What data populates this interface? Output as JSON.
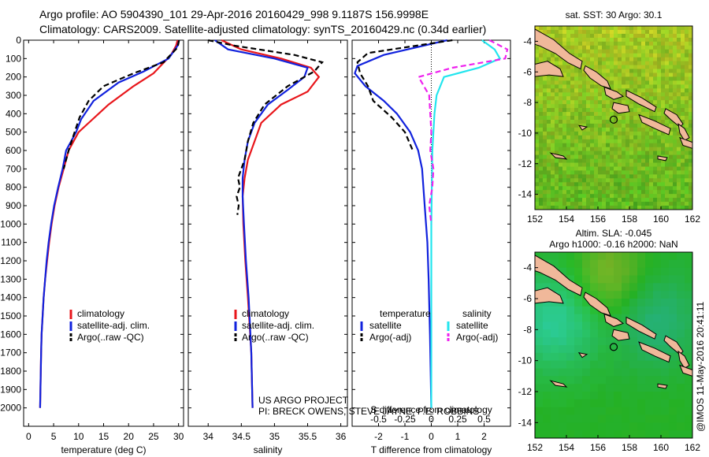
{
  "header": {
    "title_line1": "Argo profile: AO 5904390_101 29-Apr-2016 20160429_998 9.1187S 156.9998E",
    "title_line2": "Climatology: CARS2009. Satellite-adjusted climatology: synTS_20160429.nc (0.34d earlier)"
  },
  "credits": {
    "line1": "US ARGO PROJECT",
    "line2": "PI: BRECK OWENS, STEVE JAYNE, P.E. ROBBINS",
    "stamp": "@IMOS 11-May-2016 20:41:11"
  },
  "colors": {
    "climatology": "#e8161b",
    "satellite_adj": "#1122dd",
    "argo": "#000000",
    "salinity_satellite": "#22e5ee",
    "salinity_argo": "#ee22ee",
    "land": "#f0b89a",
    "map_green": "#4fc83c"
  },
  "chart_data": [
    {
      "type": "line",
      "xlabel": "temperature (deg C)",
      "ylabel": "",
      "xlim": [
        -1,
        31
      ],
      "ylim": [
        2100,
        0
      ],
      "xticks": [
        0,
        5,
        10,
        15,
        20,
        25,
        30
      ],
      "yticks": [
        0,
        100,
        200,
        300,
        400,
        500,
        600,
        700,
        800,
        900,
        1000,
        1100,
        1200,
        1300,
        1400,
        1500,
        1600,
        1700,
        1800,
        1900,
        2000
      ],
      "legend": [
        "climatology",
        "satellite-adj. clim.",
        "Argo(..raw -QC)"
      ],
      "legend_position": "lower-center",
      "series": [
        {
          "name": "climatology",
          "style": "solid",
          "color": "#e8161b",
          "x": [
            29.8,
            29.5,
            28.5,
            25,
            21,
            16,
            12,
            10,
            9,
            8,
            7,
            6,
            5.2,
            4.6,
            4.1,
            3.7,
            3.3,
            3.0,
            2.8,
            2.6,
            2.5,
            2.3
          ],
          "y": [
            0,
            30,
            80,
            180,
            250,
            350,
            450,
            500,
            550,
            600,
            700,
            800,
            900,
            1000,
            1100,
            1200,
            1300,
            1400,
            1500,
            1600,
            1700,
            2000
          ]
        },
        {
          "name": "satellite-adj. clim.",
          "style": "solid",
          "color": "#1122dd",
          "x": [
            30.1,
            29.8,
            28,
            23,
            18,
            13,
            10.5,
            9.5,
            8.5,
            7.5,
            6.8,
            5.9,
            5.1,
            4.5,
            4.0,
            3.6,
            3.3,
            3.0,
            2.8,
            2.6,
            2.5,
            2.3
          ],
          "y": [
            0,
            30,
            100,
            170,
            230,
            330,
            430,
            500,
            550,
            600,
            700,
            800,
            900,
            1000,
            1100,
            1200,
            1300,
            1400,
            1500,
            1600,
            1700,
            2000
          ]
        },
        {
          "name": "Argo(..raw -QC)",
          "style": "dashed",
          "color": "#000000",
          "x": [
            30.1,
            29.8,
            27,
            21,
            15,
            12,
            10.2,
            9.2,
            8,
            7
          ],
          "y": [
            0,
            40,
            120,
            180,
            250,
            330,
            420,
            500,
            600,
            700
          ]
        }
      ]
    },
    {
      "type": "line",
      "xlabel": "salinity",
      "ylabel": "",
      "xlim": [
        33.7,
        36.1
      ],
      "ylim": [
        2100,
        0
      ],
      "xticks": [
        34,
        34.5,
        35,
        35.5,
        36
      ],
      "legend": [
        "climatology",
        "satellite-adj. clim.",
        "Argo(..raw -QC)"
      ],
      "legend_position": "lower-center",
      "series": [
        {
          "name": "climatology",
          "style": "solid",
          "color": "#e8161b",
          "x": [
            34.2,
            34.5,
            35.1,
            35.55,
            35.67,
            35.5,
            35.1,
            34.8,
            34.7,
            34.6,
            34.55,
            34.52,
            34.53,
            34.56,
            34.6,
            34.65,
            34.67
          ],
          "y": [
            0,
            50,
            100,
            150,
            200,
            280,
            350,
            450,
            550,
            650,
            750,
            850,
            1000,
            1200,
            1400,
            1700,
            2000
          ]
        },
        {
          "name": "satellite-adj. clim.",
          "style": "solid",
          "color": "#1122dd",
          "x": [
            34.1,
            34.3,
            35.0,
            35.5,
            35.45,
            35.2,
            34.9,
            34.7,
            34.6,
            34.55,
            34.52,
            34.52,
            34.54,
            34.57,
            34.61,
            34.65,
            34.67
          ],
          "y": [
            0,
            50,
            100,
            150,
            200,
            270,
            350,
            450,
            550,
            650,
            750,
            850,
            1000,
            1200,
            1400,
            1700,
            2000
          ]
        },
        {
          "name": "Argo(..raw -QC)",
          "style": "dashed",
          "color": "#000000",
          "x": [
            34.0,
            34.4,
            35.3,
            35.72,
            35.6,
            35.2,
            34.85,
            34.68,
            34.6,
            34.55,
            34.45,
            34.48,
            34.43,
            34.46,
            34.44
          ],
          "y": [
            0,
            30,
            80,
            120,
            170,
            250,
            350,
            450,
            550,
            650,
            750,
            800,
            850,
            900,
            950
          ]
        }
      ]
    },
    {
      "type": "line",
      "xlabel": "T difference from climatology",
      "xlabel_top": "S difference from climatology",
      "xlim": [
        -3,
        3
      ],
      "xticks": [
        -2,
        -1,
        0,
        1,
        2
      ],
      "xlim_salinity": [
        -0.75,
        0.75
      ],
      "xticks_salinity": [
        -0.5,
        -0.25,
        0,
        0.25,
        0.5
      ],
      "ylim": [
        2100,
        0
      ],
      "legend": [
        "temperature",
        "satellite",
        "Argo(-adj)",
        "salinity",
        "satellite",
        "Argo(-adj)"
      ],
      "legend_position": "lower-center",
      "series": [
        {
          "name": "satellite",
          "quantity": "temperature",
          "style": "solid",
          "color": "#1122dd",
          "x": [
            0.6,
            -1.8,
            -2.8,
            -2.9,
            -2.5,
            -1.8,
            -1.3,
            -0.8,
            -0.5,
            -0.35,
            -0.25,
            -0.15,
            -0.1,
            -0.05,
            0
          ],
          "y": [
            0,
            80,
            140,
            180,
            250,
            330,
            400,
            500,
            600,
            700,
            900,
            1100,
            1300,
            1600,
            2000
          ]
        },
        {
          "name": "Argo(-adj)",
          "quantity": "temperature",
          "style": "dashed",
          "color": "#000000",
          "x": [
            0.8,
            -2.4,
            -2.8,
            -2.7,
            -2.4,
            -2.2,
            -1.5,
            -1.0,
            -0.7
          ],
          "y": [
            0,
            70,
            120,
            180,
            250,
            330,
            420,
            500,
            600
          ]
        },
        {
          "name": "satellite",
          "quantity": "salinity",
          "style": "solid",
          "color": "#22e5ee",
          "x": [
            0.48,
            0.6,
            0.65,
            0.45,
            0.12,
            0.05,
            0.03,
            0.01,
            0.0,
            0.0
          ],
          "y": [
            0,
            50,
            100,
            150,
            200,
            300,
            400,
            600,
            1000,
            2000
          ]
        },
        {
          "name": "Argo(-adj)",
          "quantity": "salinity",
          "style": "dashed",
          "color": "#ee22ee",
          "x": [
            0.55,
            0.72,
            0.7,
            0.2,
            -0.12,
            -0.02,
            0.0,
            -0.01,
            0.02,
            0.01,
            -0.02,
            0.0
          ],
          "y": [
            0,
            50,
            100,
            150,
            200,
            300,
            500,
            600,
            700,
            800,
            900,
            1000
          ]
        }
      ]
    },
    {
      "type": "heatmap",
      "title": "sat. SST: 30 Argo: 30.1",
      "xlim": [
        152,
        162
      ],
      "ylim": [
        -15,
        -3
      ],
      "xticks": [
        152,
        154,
        156,
        158,
        160,
        162
      ],
      "yticks": [
        -4,
        -6,
        -8,
        -10,
        -12,
        -14
      ],
      "marker": {
        "x": 157.0,
        "y": -9.12
      }
    },
    {
      "type": "heatmap",
      "title": "Altim. SLA: -0.045",
      "subtitle": "Argo h1000: -0.16 h2000: NaN",
      "xlim": [
        152,
        162
      ],
      "ylim": [
        -15,
        -3
      ],
      "xticks": [
        152,
        154,
        156,
        158,
        160,
        162
      ],
      "yticks": [
        -4,
        -6,
        -8,
        -10,
        -12,
        -14
      ],
      "marker": {
        "x": 157.0,
        "y": -9.12
      }
    }
  ]
}
